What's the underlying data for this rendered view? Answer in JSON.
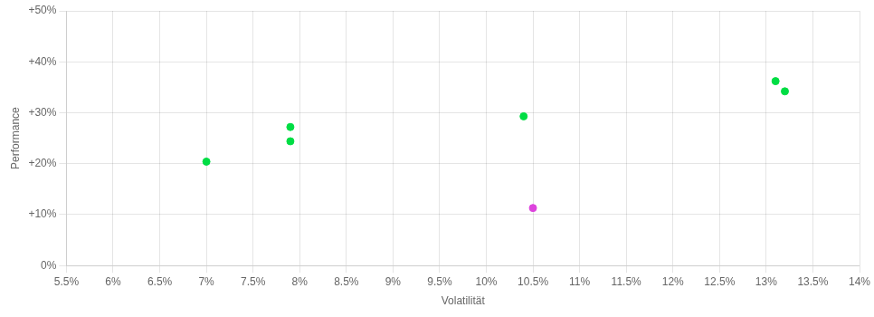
{
  "chart_data": {
    "type": "scatter",
    "xlabel": "Volatilität",
    "ylabel": "Performance",
    "series": [
      {
        "color": "#00dd44",
        "x": [
          0.07,
          0.079,
          0.079,
          0.104,
          0.131,
          0.132
        ],
        "y": [
          0.204,
          0.272,
          0.244,
          0.293,
          0.362,
          0.342
        ]
      },
      {
        "color": "#dd44dd",
        "x": [
          0.105
        ],
        "y": [
          0.113
        ]
      }
    ],
    "xlim": [
      0.055,
      0.14
    ],
    "xticks": [
      {
        "value": 0.055,
        "label": "5.5%"
      },
      {
        "value": 0.06,
        "label": "6%"
      },
      {
        "value": 0.065,
        "label": "6.5%"
      },
      {
        "value": 0.07,
        "label": "7%"
      },
      {
        "value": 0.075,
        "label": "7.5%"
      },
      {
        "value": 0.08,
        "label": "8%"
      },
      {
        "value": 0.085,
        "label": "8.5%"
      },
      {
        "value": 0.09,
        "label": "9%"
      },
      {
        "value": 0.095,
        "label": "9.5%"
      },
      {
        "value": 0.1,
        "label": "10%"
      },
      {
        "value": 0.105,
        "label": "10.5%"
      },
      {
        "value": 0.11,
        "label": "11%"
      },
      {
        "value": 0.115,
        "label": "11.5%"
      },
      {
        "value": 0.12,
        "label": "12%"
      },
      {
        "value": 0.125,
        "label": "12.5%"
      },
      {
        "value": 0.13,
        "label": "13%"
      },
      {
        "value": 0.135,
        "label": "13.5%"
      },
      {
        "value": 0.14,
        "label": "14%"
      }
    ],
    "ylim": [
      0.0,
      0.5
    ],
    "yticks": [
      {
        "value": 0.0,
        "label": "0%"
      },
      {
        "value": 0.1,
        "label": "+10%"
      },
      {
        "value": 0.2,
        "label": "+20%"
      },
      {
        "value": 0.3,
        "label": "+30%"
      },
      {
        "value": 0.4,
        "label": "+40%"
      },
      {
        "value": 0.5,
        "label": "+50%"
      }
    ],
    "grid": true
  }
}
